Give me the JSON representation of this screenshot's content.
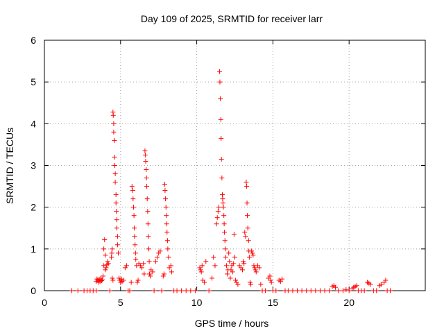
{
  "chart_data": {
    "type": "scatter",
    "title": "Day 109 of 2025, SRMTID for receiver larr",
    "xlabel": "GPS time / hours",
    "ylabel": "SRMTID / TECUs",
    "xlim": [
      0,
      25
    ],
    "ylim": [
      0,
      6
    ],
    "xticks": [
      "0",
      "5",
      "10",
      "15",
      "20"
    ],
    "xtick_values": [
      0,
      5,
      10,
      15,
      20
    ],
    "yticks": [
      "0",
      "1",
      "2",
      "3",
      "4",
      "5",
      "6"
    ],
    "ytick_values": [
      0,
      1,
      2,
      3,
      4,
      5,
      6
    ],
    "grid": true,
    "marker": "+",
    "colors": {
      "series": "#ff0000",
      "grid": "#a0a0a0",
      "axis": "#000000"
    },
    "series": [
      {
        "name": "SRMTID",
        "points": [
          [
            1.8,
            0
          ],
          [
            2.2,
            0
          ],
          [
            2.6,
            0
          ],
          [
            2.8,
            0
          ],
          [
            3.0,
            0
          ],
          [
            3.2,
            0
          ],
          [
            3.4,
            0
          ],
          [
            3.4,
            0.22
          ],
          [
            3.45,
            0.28
          ],
          [
            3.5,
            0.25
          ],
          [
            3.55,
            0.2
          ],
          [
            3.6,
            0.27
          ],
          [
            3.65,
            0.22
          ],
          [
            3.7,
            0.3
          ],
          [
            3.75,
            0.24
          ],
          [
            3.8,
            0.26
          ],
          [
            3.85,
            0.35
          ],
          [
            3.9,
            0.6
          ],
          [
            3.9,
            1.0
          ],
          [
            3.95,
            1.22
          ],
          [
            4.0,
            0.5
          ],
          [
            4.0,
            0.85
          ],
          [
            4.05,
            0.55
          ],
          [
            4.1,
            0.62
          ],
          [
            4.15,
            0.7
          ],
          [
            4.2,
            0.65
          ],
          [
            4.3,
            0
          ],
          [
            4.4,
            0.8
          ],
          [
            4.42,
            0.9
          ],
          [
            4.45,
            1.0
          ],
          [
            4.45,
            0.3
          ],
          [
            4.5,
            0.25
          ],
          [
            4.5,
            4.28
          ],
          [
            4.52,
            4.2
          ],
          [
            4.55,
            4.0
          ],
          [
            4.55,
            3.8
          ],
          [
            4.6,
            3.6
          ],
          [
            4.6,
            3.2
          ],
          [
            4.62,
            3.0
          ],
          [
            4.65,
            2.8
          ],
          [
            4.65,
            2.6
          ],
          [
            4.7,
            2.3
          ],
          [
            4.7,
            2.1
          ],
          [
            4.72,
            1.9
          ],
          [
            4.75,
            1.7
          ],
          [
            4.75,
            1.5
          ],
          [
            4.8,
            1.3
          ],
          [
            4.8,
            1.1
          ],
          [
            4.85,
            0.9
          ],
          [
            4.9,
            0.3
          ],
          [
            4.95,
            0.25
          ],
          [
            5.0,
            0.2
          ],
          [
            5.05,
            0.28
          ],
          [
            5.1,
            0.22
          ],
          [
            5.2,
            0.25
          ],
          [
            5.3,
            0.55
          ],
          [
            5.4,
            0.6
          ],
          [
            5.5,
            0
          ],
          [
            5.6,
            0
          ],
          [
            5.7,
            0.2
          ],
          [
            5.75,
            2.5
          ],
          [
            5.8,
            2.4
          ],
          [
            5.82,
            2.2
          ],
          [
            5.85,
            2.0
          ],
          [
            5.88,
            1.8
          ],
          [
            5.9,
            1.5
          ],
          [
            5.92,
            1.3
          ],
          [
            5.95,
            1.1
          ],
          [
            5.98,
            0.9
          ],
          [
            6.0,
            0.75
          ],
          [
            6.05,
            0.6
          ],
          [
            6.1,
            0.2
          ],
          [
            6.15,
            0.25
          ],
          [
            6.2,
            0.65
          ],
          [
            6.3,
            0.6
          ],
          [
            6.4,
            0.55
          ],
          [
            6.5,
            0.65
          ],
          [
            6.55,
            0.4
          ],
          [
            6.6,
            3.35
          ],
          [
            6.62,
            3.25
          ],
          [
            6.65,
            3.1
          ],
          [
            6.68,
            2.9
          ],
          [
            6.7,
            2.7
          ],
          [
            6.72,
            2.5
          ],
          [
            6.75,
            2.2
          ],
          [
            6.78,
            1.9
          ],
          [
            6.8,
            1.6
          ],
          [
            6.82,
            1.3
          ],
          [
            6.85,
            1.0
          ],
          [
            6.88,
            0.7
          ],
          [
            6.9,
            0.4
          ],
          [
            6.95,
            0.35
          ],
          [
            7.0,
            0.5
          ],
          [
            7.1,
            0.45
          ],
          [
            7.2,
            0
          ],
          [
            7.3,
            0.7
          ],
          [
            7.4,
            0.8
          ],
          [
            7.5,
            0.9
          ],
          [
            7.6,
            0.95
          ],
          [
            7.7,
            0
          ],
          [
            7.8,
            0.35
          ],
          [
            7.85,
            0.4
          ],
          [
            7.9,
            2.55
          ],
          [
            7.92,
            2.4
          ],
          [
            7.95,
            2.2
          ],
          [
            7.98,
            2.0
          ],
          [
            8.0,
            1.8
          ],
          [
            8.02,
            1.6
          ],
          [
            8.05,
            1.4
          ],
          [
            8.08,
            1.2
          ],
          [
            8.1,
            1.0
          ],
          [
            8.15,
            0.8
          ],
          [
            8.2,
            0.55
          ],
          [
            8.3,
            0.6
          ],
          [
            8.35,
            0.45
          ],
          [
            8.5,
            0
          ],
          [
            8.7,
            0
          ],
          [
            9.0,
            0
          ],
          [
            9.3,
            0
          ],
          [
            9.6,
            0
          ],
          [
            9.9,
            0
          ],
          [
            10.2,
            0.55
          ],
          [
            10.25,
            0.5
          ],
          [
            10.3,
            0.45
          ],
          [
            10.35,
            0.6
          ],
          [
            10.4,
            0.25
          ],
          [
            10.5,
            0.2
          ],
          [
            10.6,
            0.7
          ],
          [
            10.8,
            0
          ],
          [
            11.0,
            0.3
          ],
          [
            11.1,
            0.8
          ],
          [
            11.2,
            0.6
          ],
          [
            11.3,
            1.6
          ],
          [
            11.35,
            1.75
          ],
          [
            11.4,
            1.9
          ],
          [
            11.45,
            2.0
          ],
          [
            11.5,
            5.25
          ],
          [
            11.52,
            5.0
          ],
          [
            11.55,
            4.6
          ],
          [
            11.58,
            4.1
          ],
          [
            11.6,
            3.65
          ],
          [
            11.62,
            3.15
          ],
          [
            11.65,
            2.7
          ],
          [
            11.68,
            2.3
          ],
          [
            11.7,
            2.2
          ],
          [
            11.72,
            2.1
          ],
          [
            11.75,
            2.0
          ],
          [
            11.78,
            1.8
          ],
          [
            11.8,
            1.6
          ],
          [
            11.82,
            1.4
          ],
          [
            11.85,
            1.2
          ],
          [
            11.88,
            1.0
          ],
          [
            11.9,
            0.8
          ],
          [
            11.95,
            0.6
          ],
          [
            12.0,
            0.4
          ],
          [
            12.05,
            0.5
          ],
          [
            12.1,
            0.9
          ],
          [
            12.15,
            0.7
          ],
          [
            12.2,
            0.3
          ],
          [
            12.25,
            0.5
          ],
          [
            12.3,
            0.6
          ],
          [
            12.35,
            0.45
          ],
          [
            12.4,
            0.65
          ],
          [
            12.45,
            1.35
          ],
          [
            12.5,
            0.8
          ],
          [
            12.55,
            0.25
          ],
          [
            12.6,
            0.2
          ],
          [
            12.7,
            0.15
          ],
          [
            12.8,
            0.6
          ],
          [
            12.9,
            0.55
          ],
          [
            13.0,
            0.5
          ],
          [
            13.05,
            0.7
          ],
          [
            13.1,
            0.65
          ],
          [
            13.15,
            1.4
          ],
          [
            13.2,
            1.3
          ],
          [
            13.25,
            2.6
          ],
          [
            13.28,
            2.5
          ],
          [
            13.3,
            2.1
          ],
          [
            13.32,
            1.8
          ],
          [
            13.35,
            1.5
          ],
          [
            13.4,
            1.2
          ],
          [
            13.42,
            0.95
          ],
          [
            13.45,
            0.8
          ],
          [
            13.5,
            0.2
          ],
          [
            13.55,
            0.15
          ],
          [
            13.6,
            0.95
          ],
          [
            13.65,
            0.9
          ],
          [
            13.7,
            0.85
          ],
          [
            13.75,
            0.6
          ],
          [
            13.8,
            0.55
          ],
          [
            13.85,
            0.5
          ],
          [
            13.9,
            0.45
          ],
          [
            14.0,
            0.6
          ],
          [
            14.1,
            0.55
          ],
          [
            14.2,
            0.15
          ],
          [
            14.3,
            0
          ],
          [
            14.5,
            0
          ],
          [
            14.7,
            0.3
          ],
          [
            14.8,
            0.35
          ],
          [
            14.85,
            0.25
          ],
          [
            14.9,
            0.2
          ],
          [
            15.0,
            0
          ],
          [
            15.2,
            0
          ],
          [
            15.4,
            0.25
          ],
          [
            15.5,
            0.22
          ],
          [
            15.6,
            0.28
          ],
          [
            15.8,
            0
          ],
          [
            16.0,
            0
          ],
          [
            16.3,
            0
          ],
          [
            16.6,
            0
          ],
          [
            16.9,
            0
          ],
          [
            17.2,
            0
          ],
          [
            17.5,
            0
          ],
          [
            17.8,
            0
          ],
          [
            18.1,
            0
          ],
          [
            18.4,
            0
          ],
          [
            18.7,
            0
          ],
          [
            18.9,
            0.1
          ],
          [
            19.0,
            0.12
          ],
          [
            19.1,
            0.08
          ],
          [
            19.3,
            0
          ],
          [
            19.6,
            0
          ],
          [
            19.8,
            0.03
          ],
          [
            20.0,
            0
          ],
          [
            20.2,
            0.05
          ],
          [
            20.3,
            0.08
          ],
          [
            20.4,
            0.1
          ],
          [
            20.5,
            0.12
          ],
          [
            20.6,
            0
          ],
          [
            20.8,
            0
          ],
          [
            21.0,
            0
          ],
          [
            21.2,
            0.2
          ],
          [
            21.3,
            0.18
          ],
          [
            21.4,
            0.15
          ],
          [
            21.6,
            0
          ],
          [
            21.8,
            0
          ],
          [
            22.0,
            0.12
          ],
          [
            22.1,
            0.15
          ],
          [
            22.3,
            0.2
          ],
          [
            22.4,
            0.25
          ],
          [
            22.5,
            0
          ],
          [
            22.7,
            0
          ]
        ]
      }
    ]
  }
}
